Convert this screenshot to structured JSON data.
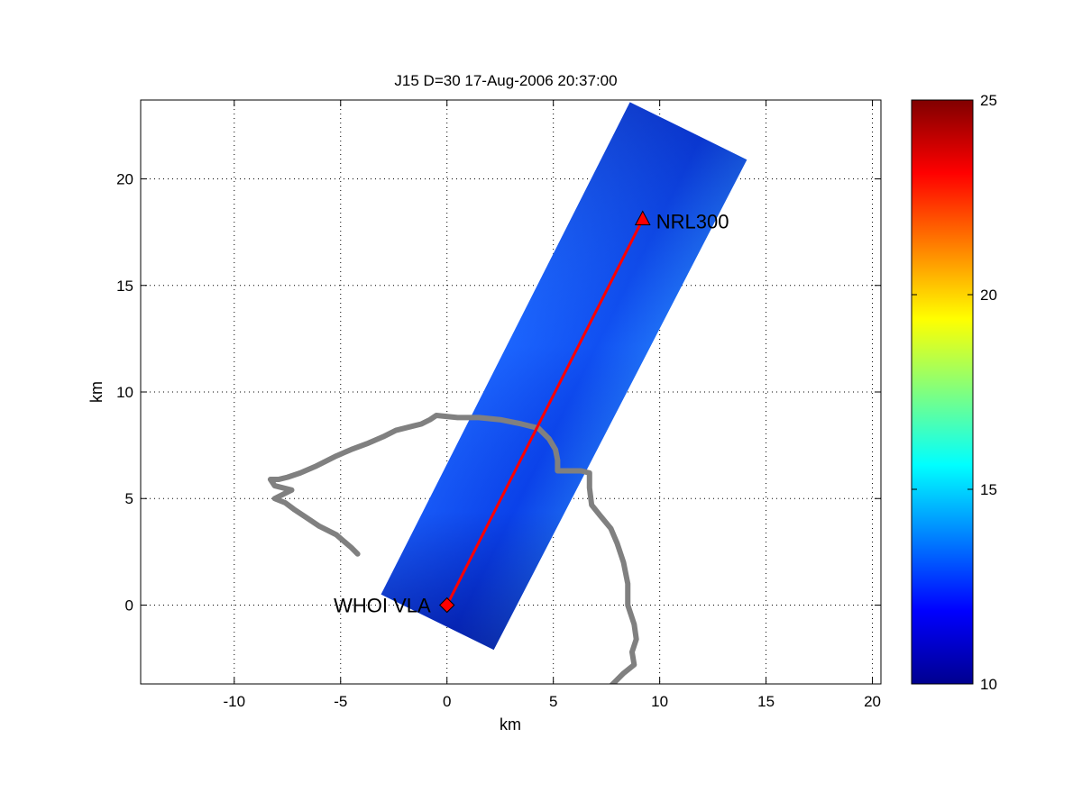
{
  "chart_data": {
    "type": "scatter",
    "title": "J15 D=30 17-Aug-2006 20:37:00",
    "xlabel": "km",
    "ylabel": "km",
    "xlim": [
      -14.4,
      20.4
    ],
    "ylim": [
      -3.7,
      23.7
    ],
    "xticks": [
      "-10",
      "-5",
      "0",
      "5",
      "10",
      "15",
      "20"
    ],
    "yticks": [
      "0",
      "5",
      "10",
      "15",
      "20"
    ],
    "xtick_values": [
      -10,
      -5,
      0,
      5,
      10,
      15,
      20
    ],
    "ytick_values": [
      0,
      5,
      10,
      15,
      20
    ],
    "grid": true,
    "colorbar": {
      "range": [
        10,
        25
      ],
      "ticks": [
        "10",
        "15",
        "20",
        "25"
      ],
      "tick_values": [
        10,
        15,
        20,
        25
      ],
      "colormap": "jet"
    },
    "field": {
      "name": "swath",
      "corners": [
        [
          -3.1,
          0.5
        ],
        [
          8.6,
          23.6
        ],
        [
          14.1,
          20.9
        ],
        [
          2.2,
          -2.1
        ]
      ],
      "value_range": [
        10,
        13
      ]
    },
    "markers": [
      {
        "label": "WHOI VLA",
        "x": 0.0,
        "y": 0.0,
        "shape": "diamond",
        "color": "#ff0000"
      },
      {
        "label": "NRL300",
        "x": 9.2,
        "y": 18.1,
        "shape": "triangle",
        "color": "#ff0000"
      }
    ],
    "path_line": {
      "color": "#ff0000",
      "points": [
        [
          0.0,
          0.0
        ],
        [
          9.2,
          18.1
        ]
      ]
    },
    "track": {
      "color": "#808080",
      "points": [
        [
          -4.2,
          2.4
        ],
        [
          -4.5,
          2.7
        ],
        [
          -5.2,
          3.3
        ],
        [
          -6.0,
          3.7
        ],
        [
          -6.6,
          4.1
        ],
        [
          -7.2,
          4.5
        ],
        [
          -7.6,
          4.8
        ],
        [
          -8.1,
          5.0
        ],
        [
          -7.3,
          5.4
        ],
        [
          -8.1,
          5.6
        ],
        [
          -8.3,
          5.9
        ],
        [
          -7.9,
          5.9
        ],
        [
          -7.5,
          6.0
        ],
        [
          -6.9,
          6.2
        ],
        [
          -6.2,
          6.5
        ],
        [
          -5.2,
          7.0
        ],
        [
          -4.5,
          7.3
        ],
        [
          -3.7,
          7.6
        ],
        [
          -3.0,
          7.9
        ],
        [
          -2.4,
          8.2
        ],
        [
          -1.6,
          8.4
        ],
        [
          -1.2,
          8.5
        ],
        [
          -0.8,
          8.7
        ],
        [
          -0.5,
          8.9
        ],
        [
          0.5,
          8.8
        ],
        [
          1.5,
          8.8
        ],
        [
          2.5,
          8.7
        ],
        [
          3.5,
          8.5
        ],
        [
          4.3,
          8.3
        ],
        [
          4.8,
          7.8
        ],
        [
          5.1,
          7.3
        ],
        [
          5.2,
          6.8
        ],
        [
          5.2,
          6.3
        ],
        [
          5.6,
          6.3
        ],
        [
          6.3,
          6.3
        ],
        [
          6.7,
          6.2
        ],
        [
          6.7,
          5.5
        ],
        [
          6.8,
          4.7
        ],
        [
          7.2,
          4.2
        ],
        [
          7.7,
          3.6
        ],
        [
          8.0,
          2.9
        ],
        [
          8.3,
          2.0
        ],
        [
          8.5,
          1.0
        ],
        [
          8.5,
          0.0
        ],
        [
          8.8,
          -0.9
        ],
        [
          8.9,
          -1.6
        ],
        [
          8.7,
          -2.2
        ],
        [
          8.8,
          -2.8
        ],
        [
          8.3,
          -3.2
        ],
        [
          7.9,
          -3.6
        ],
        [
          7.6,
          -3.9
        ]
      ]
    }
  }
}
